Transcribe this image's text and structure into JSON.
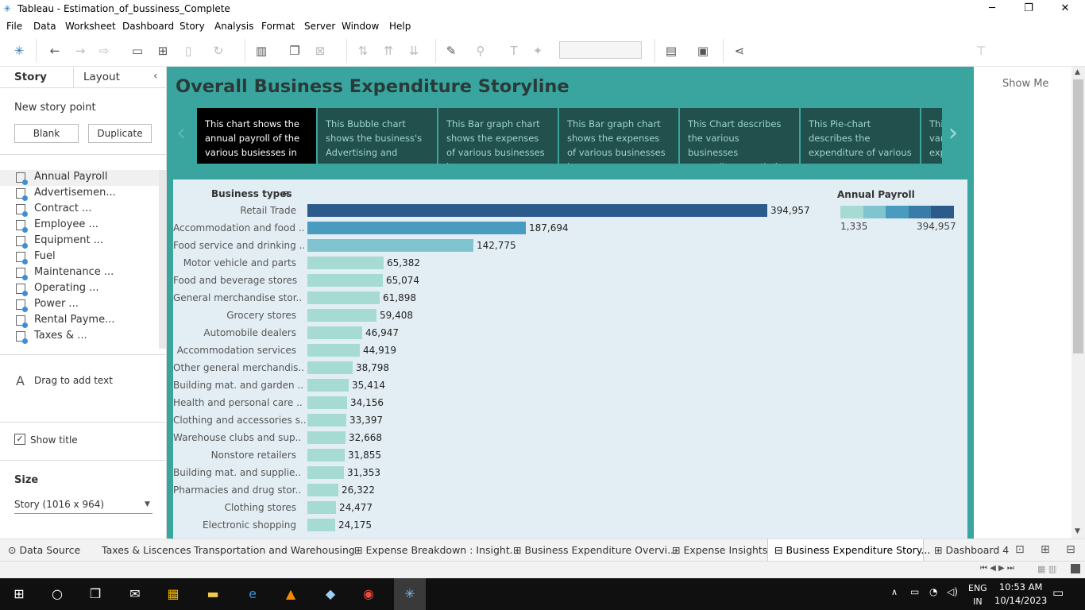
{
  "window": {
    "title": "Tableau - Estimation_of_bussiness_Complete",
    "minimize": "─",
    "restore": "❐",
    "close": "✕"
  },
  "menu": [
    "File",
    "Data",
    "Worksheet",
    "Dashboard",
    "Story",
    "Analysis",
    "Format",
    "Server",
    "Window",
    "Help"
  ],
  "toolbar": {
    "show_me": "Show Me"
  },
  "side": {
    "tab_story": "Story",
    "tab_layout": "Layout",
    "new_story_point": "New story point",
    "blank": "Blank",
    "duplicate": "Duplicate",
    "sheets": [
      "Annual Payroll",
      "Advertisemen...",
      "Contract ...",
      "Employee ...",
      "Equipment ...",
      "Fuel",
      "Maintenance ...",
      "Operating ...",
      "Power ...",
      "Rental Payme...",
      "Taxes & ..."
    ],
    "drag_text": "Drag to add text",
    "show_title": "Show title",
    "size_label": "Size",
    "size_value": "Story (1016 x 964)"
  },
  "story": {
    "title": "Overall Business Expenditure Storyline",
    "points": [
      "This chart shows the annual payroll of the various busiesses in",
      "This Bubble chart shows the business's Advertising and",
      "This Bar graph chart shows the expenses of various businesses in",
      "This Bar graph chart shows the expenses of various businesses in",
      "This Chart describes the various businesses expenditure on their",
      "This Pie-chart describes the expenditure of various",
      "This various exp"
    ]
  },
  "chart_data": {
    "type": "bar",
    "orientation": "horizontal",
    "xlabel": "",
    "ylabel": "Business types",
    "categories": [
      "Retail Trade",
      "Accommodation and food ..",
      "Food service and drinking ..",
      "Motor vehicle and parts",
      "Food and beverage stores",
      "General merchandise stor..",
      "Grocery stores",
      "Automobile dealers",
      "Accommodation services",
      "Other general merchandis..",
      "Building mat. and garden ..",
      "Health and personal care ..",
      "Clothing and accessories s..",
      "Warehouse clubs and sup..",
      "Nonstore retailers",
      "Building mat. and supplie..",
      "Pharmacies and drug stor..",
      "Clothing stores",
      "Electronic shopping"
    ],
    "values": [
      394957,
      187694,
      142775,
      65382,
      65074,
      61898,
      59408,
      46947,
      44919,
      38798,
      35414,
      34156,
      33397,
      32668,
      31855,
      31353,
      26322,
      24477,
      24175
    ],
    "value_labels": [
      "394,957",
      "187,694",
      "142,775",
      "65,382",
      "65,074",
      "61,898",
      "59,408",
      "46,947",
      "44,919",
      "38,798",
      "35,414",
      "34,156",
      "33,397",
      "32,668",
      "31,855",
      "31,353",
      "26,322",
      "24,477",
      "24,175"
    ],
    "xlim": [
      0,
      394957
    ],
    "legend": {
      "title": "Annual Payroll",
      "min": "1,335",
      "max": "394,957",
      "placement": "top-right"
    },
    "colors": [
      "#a6dbd4",
      "#7fc4cf",
      "#4a9bc0",
      "#3a7ca8",
      "#2c5a8a"
    ]
  },
  "sheet_tabs": [
    "Data Source",
    "Taxes & Liscences",
    "Transportation and Warehousing",
    "Expense Breakdown : Insight...",
    "Business Expenditure Overvi...",
    "Expense Insights",
    "Business Expenditure Story...",
    "Dashboard 4"
  ],
  "taskbar": {
    "lang1": "ENG",
    "lang2": "IN",
    "time": "10:53 AM",
    "date": "10/14/2023"
  }
}
